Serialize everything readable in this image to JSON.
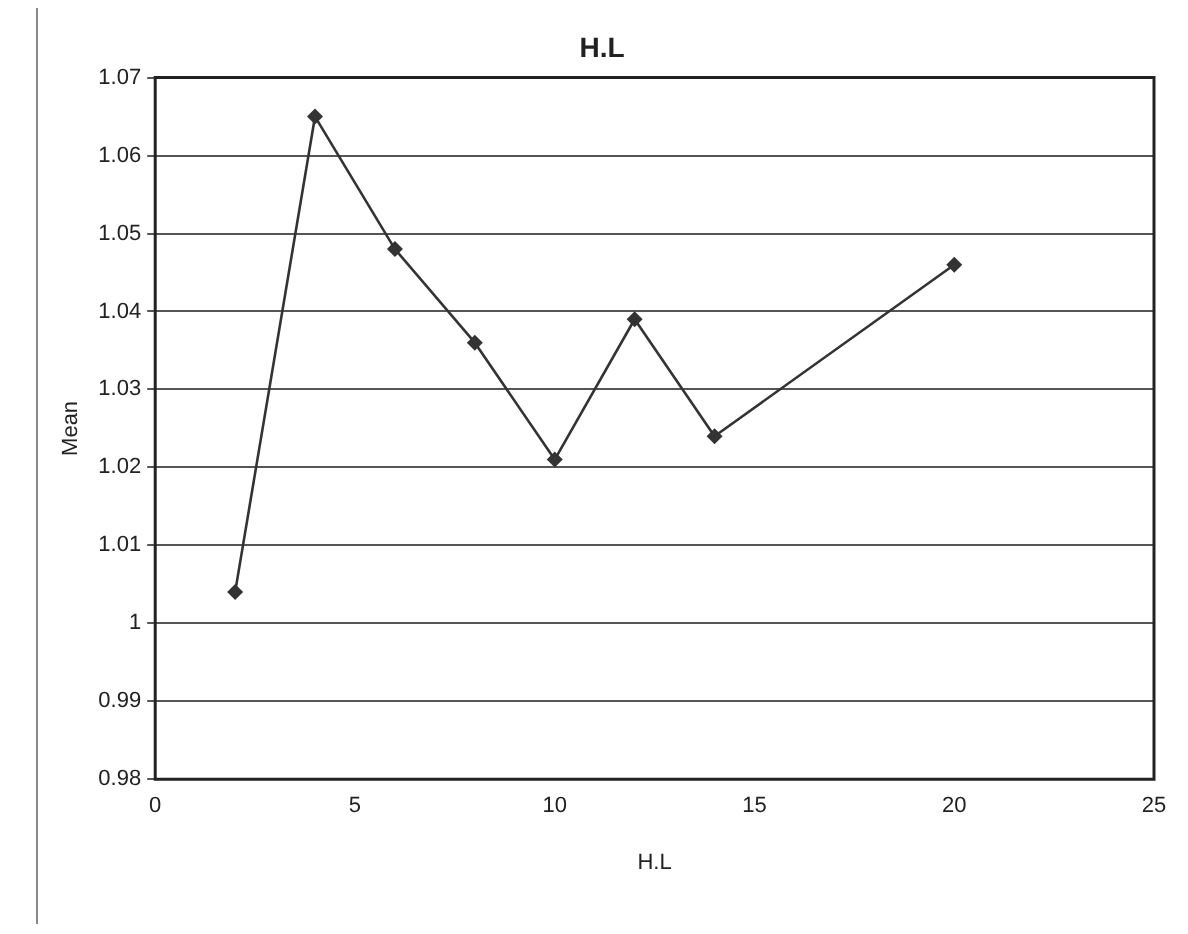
{
  "chart_data": {
    "type": "line",
    "title": "H.L",
    "xlabel": "H.L",
    "ylabel": "Mean",
    "x": [
      2,
      4,
      6,
      8,
      10,
      12,
      14,
      20
    ],
    "series": [
      {
        "color": "#333333",
        "values": [
          1.004,
          1.065,
          1.048,
          1.036,
          1.021,
          1.039,
          1.024,
          1.046
        ]
      }
    ],
    "xlim": [
      0,
      25
    ],
    "xticks": [
      0,
      5,
      10,
      15,
      20,
      25
    ],
    "ylim": [
      0.98,
      1.07
    ],
    "yticks": [
      0.98,
      0.99,
      1,
      1.01,
      1.02,
      1.03,
      1.04,
      1.05,
      1.06,
      1.07
    ],
    "grid": "y",
    "legend": false,
    "marker": "diamond",
    "line_style": "solid"
  }
}
